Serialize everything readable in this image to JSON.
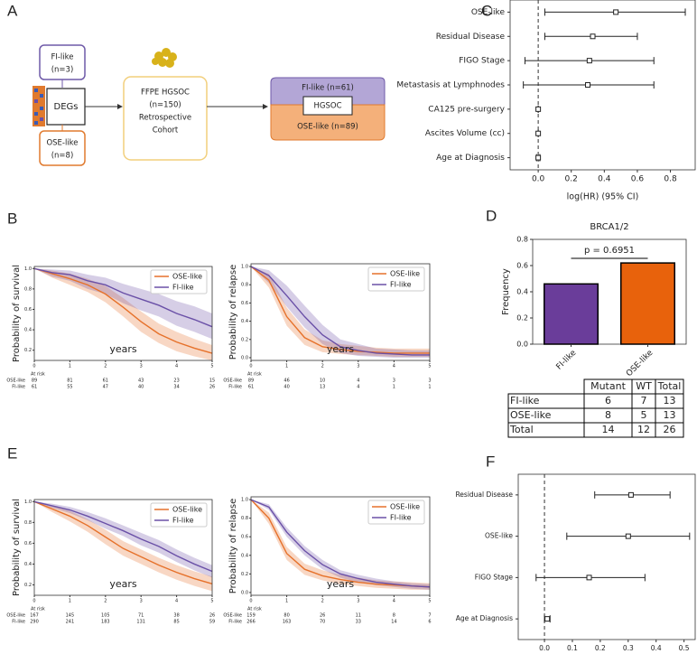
{
  "panel_labels": [
    "A",
    "B",
    "C",
    "D",
    "E",
    "F"
  ],
  "diagram": {
    "fi_box": [
      "FI-like",
      "(n=3)"
    ],
    "degs": "DEGs",
    "ose_box": [
      "OSE-like",
      "(n=8)"
    ],
    "cohort": [
      "FFPE HGSOC",
      "(n=150)",
      "Retrospective",
      "Cohort"
    ],
    "result": {
      "top": "FI-like (n=61)",
      "middle": "HGSOC",
      "bottom": "OSE-like (n=89)"
    }
  },
  "chart_data": [
    {
      "type": "forest",
      "categories": [
        "OSE-like",
        "Residual Disease",
        "FIGO Stage",
        "Metastasis at Lymphnodes",
        "CA125 pre-surgery",
        "Ascites Volume (cc)",
        "Age at Diagnosis"
      ],
      "values": [
        0.47,
        0.33,
        0.31,
        0.3,
        0.0,
        0.0,
        0.0
      ],
      "ci_lower": [
        0.04,
        0.04,
        -0.08,
        -0.09,
        0.0,
        0.0,
        -0.01
      ],
      "ci_upper": [
        0.89,
        0.6,
        0.7,
        0.7,
        0.0,
        0.0,
        0.01
      ],
      "xlabel": "log(HR) (95% CI)",
      "xlim": [
        -0.17,
        0.95
      ],
      "xticks": [
        {
          "value": 0,
          "label": "0.0"
        },
        0.2,
        0.4,
        0.6,
        0.8
      ],
      "ref_line": 0
    },
    {
      "type": "km",
      "ylabel": "Probability of survival",
      "xlabel": "years",
      "x": [
        0,
        0.5,
        1,
        1.5,
        2,
        2.5,
        3,
        3.5,
        4,
        4.5,
        5
      ],
      "xlim": [
        0,
        5
      ],
      "xticks": [
        0,
        1,
        2,
        3,
        4,
        5
      ],
      "ylim": [
        0.1,
        1.02
      ],
      "yticks": [
        0.2,
        0.4,
        0.6,
        0.8,
        {
          "value": 1,
          "label": "1.0"
        }
      ],
      "legend": "upper right",
      "at_risk_label": "At risk",
      "series": [
        {
          "name": "OSE-like",
          "color": "#e6712a",
          "values": [
            1,
            0.95,
            0.9,
            0.84,
            0.75,
            0.62,
            0.48,
            0.36,
            0.28,
            0.22,
            0.17
          ],
          "ci_lower": [
            1,
            0.91,
            0.84,
            0.77,
            0.67,
            0.53,
            0.38,
            0.27,
            0.19,
            0.14,
            0.1
          ],
          "ci_upper": [
            1,
            0.98,
            0.95,
            0.9,
            0.83,
            0.71,
            0.58,
            0.46,
            0.38,
            0.31,
            0.25
          ],
          "at_risk": [
            89,
            81,
            61,
            43,
            23,
            15
          ]
        },
        {
          "name": "FI-like",
          "color": "#6a50a7",
          "values": [
            1,
            0.96,
            0.94,
            0.88,
            0.84,
            0.76,
            0.7,
            0.64,
            0.56,
            0.5,
            0.43
          ],
          "ci_lower": [
            1,
            0.92,
            0.88,
            0.8,
            0.75,
            0.66,
            0.59,
            0.53,
            0.44,
            0.38,
            0.31
          ],
          "ci_upper": [
            1,
            0.99,
            0.98,
            0.94,
            0.91,
            0.85,
            0.8,
            0.75,
            0.68,
            0.63,
            0.56
          ],
          "at_risk": [
            61,
            55,
            47,
            40,
            34,
            26
          ]
        }
      ]
    },
    {
      "type": "km",
      "ylabel": "Probability of relapse",
      "xlabel": "years",
      "x": [
        0,
        0.5,
        1,
        1.5,
        2,
        2.5,
        3,
        3.5,
        4,
        4.5,
        5
      ],
      "xlim": [
        0,
        5
      ],
      "xticks": [
        0,
        1,
        2,
        3,
        4,
        5
      ],
      "ylim": [
        -0.03,
        1.03
      ],
      "yticks": [
        {
          "value": 0,
          "label": "0.0"
        },
        0.2,
        0.4,
        0.6,
        0.8,
        {
          "value": 1,
          "label": "1.0"
        }
      ],
      "legend": "upper right",
      "at_risk_label": "At risk",
      "series": [
        {
          "name": "OSE-like",
          "color": "#e6712a",
          "values": [
            1,
            0.85,
            0.45,
            0.22,
            0.12,
            0.09,
            0.07,
            0.06,
            0.05,
            0.05,
            0.05
          ],
          "ci_lower": [
            1,
            0.77,
            0.35,
            0.14,
            0.06,
            0.04,
            0.03,
            0.02,
            0.01,
            0.01,
            0.01
          ],
          "ci_upper": [
            1,
            0.92,
            0.55,
            0.31,
            0.19,
            0.15,
            0.13,
            0.11,
            0.1,
            0.1,
            0.1
          ],
          "at_risk": [
            89,
            46,
            10,
            4,
            3,
            3
          ]
        },
        {
          "name": "FI-like",
          "color": "#6a50a7",
          "values": [
            1,
            0.9,
            0.68,
            0.45,
            0.25,
            0.12,
            0.08,
            0.05,
            0.04,
            0.03,
            0.03
          ],
          "ci_lower": [
            1,
            0.82,
            0.56,
            0.33,
            0.15,
            0.05,
            0.02,
            0.01,
            0,
            0,
            0
          ],
          "ci_upper": [
            1,
            0.96,
            0.79,
            0.57,
            0.36,
            0.2,
            0.15,
            0.1,
            0.09,
            0.08,
            0.08
          ],
          "at_risk": [
            61,
            40,
            13,
            4,
            1,
            1
          ]
        }
      ]
    },
    {
      "type": "bar",
      "title": "BRCA1/2",
      "ylabel": "Frequency",
      "categories": [
        "FI-like",
        "OSE-like"
      ],
      "values": [
        0.46,
        0.62
      ],
      "colors": [
        "#6a3d9a",
        "#e8620c"
      ],
      "ylim": [
        0,
        0.8
      ],
      "yticks": [
        {
          "value": 0,
          "label": "0.0"
        },
        0.2,
        0.4,
        0.6,
        0.8
      ],
      "annotation": "p = 0.6951"
    },
    {
      "type": "km",
      "ylabel": "Probability of survival",
      "xlabel": "years",
      "x": [
        0,
        0.5,
        1,
        1.5,
        2,
        2.5,
        3,
        3.5,
        4,
        4.5,
        5
      ],
      "xlim": [
        0,
        5
      ],
      "xticks": [
        0,
        1,
        2,
        3,
        4,
        5
      ],
      "ylim": [
        0.1,
        1.02
      ],
      "yticks": [
        0.2,
        0.4,
        0.6,
        0.8,
        {
          "value": 1,
          "label": "1.0"
        }
      ],
      "legend": "upper right",
      "at_risk_label": "At risk",
      "series": [
        {
          "name": "OSE-like",
          "color": "#e6712a",
          "values": [
            1,
            0.93,
            0.86,
            0.77,
            0.66,
            0.55,
            0.47,
            0.39,
            0.32,
            0.26,
            0.21
          ],
          "ci_lower": [
            1,
            0.9,
            0.81,
            0.71,
            0.59,
            0.48,
            0.4,
            0.32,
            0.25,
            0.19,
            0.14
          ],
          "ci_upper": [
            1,
            0.96,
            0.91,
            0.83,
            0.73,
            0.62,
            0.54,
            0.46,
            0.39,
            0.33,
            0.28
          ],
          "at_risk": [
            167,
            145,
            105,
            71,
            38,
            26
          ]
        },
        {
          "name": "FI-like",
          "color": "#6a50a7",
          "values": [
            1,
            0.96,
            0.92,
            0.86,
            0.79,
            0.72,
            0.64,
            0.57,
            0.48,
            0.4,
            0.33
          ],
          "ci_lower": [
            1,
            0.94,
            0.89,
            0.82,
            0.74,
            0.67,
            0.58,
            0.51,
            0.42,
            0.34,
            0.27
          ],
          "ci_upper": [
            1,
            0.98,
            0.95,
            0.9,
            0.84,
            0.77,
            0.7,
            0.63,
            0.54,
            0.46,
            0.39
          ],
          "at_risk": [
            290,
            241,
            183,
            131,
            85,
            59
          ]
        }
      ]
    },
    {
      "type": "km",
      "ylabel": "Probability of relapse",
      "xlabel": "years",
      "x": [
        0,
        0.5,
        1,
        1.5,
        2,
        2.5,
        3,
        3.5,
        4,
        4.5,
        5
      ],
      "xlim": [
        0,
        5
      ],
      "xticks": [
        0,
        1,
        2,
        3,
        4,
        5
      ],
      "ylim": [
        -0.03,
        1.03
      ],
      "yticks": [
        {
          "value": 0,
          "label": "0.0"
        },
        0.2,
        0.4,
        0.6,
        0.8,
        {
          "value": 1,
          "label": "1.0"
        }
      ],
      "legend": "upper right",
      "at_risk_label": "At risk",
      "series": [
        {
          "name": "OSE-like",
          "color": "#e6712a",
          "values": [
            1,
            0.8,
            0.42,
            0.25,
            0.18,
            0.14,
            0.11,
            0.09,
            0.08,
            0.07,
            0.06
          ],
          "ci_lower": [
            1,
            0.74,
            0.35,
            0.19,
            0.13,
            0.09,
            0.07,
            0.05,
            0.04,
            0.03,
            0.03
          ],
          "ci_upper": [
            1,
            0.86,
            0.49,
            0.31,
            0.24,
            0.19,
            0.16,
            0.13,
            0.12,
            0.11,
            0.1
          ],
          "at_risk": [
            159,
            80,
            26,
            11,
            8,
            7
          ]
        },
        {
          "name": "FI-like",
          "color": "#6a50a7",
          "values": [
            1,
            0.92,
            0.65,
            0.45,
            0.3,
            0.2,
            0.15,
            0.11,
            0.09,
            0.07,
            0.06
          ],
          "ci_lower": [
            1,
            0.89,
            0.6,
            0.4,
            0.25,
            0.16,
            0.11,
            0.08,
            0.06,
            0.04,
            0.03
          ],
          "ci_upper": [
            1,
            0.95,
            0.7,
            0.5,
            0.35,
            0.24,
            0.19,
            0.15,
            0.12,
            0.1,
            0.09
          ],
          "at_risk": [
            266,
            163,
            70,
            33,
            14,
            6
          ]
        }
      ]
    },
    {
      "type": "forest",
      "categories": [
        "Residual Disease",
        "OSE-like",
        "FIGO Stage",
        "Age at Diagnosis"
      ],
      "values": [
        0.31,
        0.3,
        0.16,
        0.01
      ],
      "ci_lower": [
        0.18,
        0.08,
        -0.03,
        0.0
      ],
      "ci_upper": [
        0.45,
        0.52,
        0.36,
        0.02
      ],
      "xlim": [
        -0.094,
        0.54
      ],
      "xticks": [
        {
          "value": 0,
          "label": "0.0"
        },
        0.1,
        0.2,
        0.3,
        0.4,
        0.5
      ],
      "ref_line": 0
    }
  ],
  "table": {
    "header": [
      "Mutant",
      "WT",
      "Total"
    ],
    "rows": [
      {
        "label": "FI-like",
        "cells": [
          6,
          7,
          13
        ]
      },
      {
        "label": "OSE-like",
        "cells": [
          8,
          5,
          13
        ]
      },
      {
        "label": "Total",
        "cells": [
          14,
          12,
          26
        ]
      }
    ]
  }
}
